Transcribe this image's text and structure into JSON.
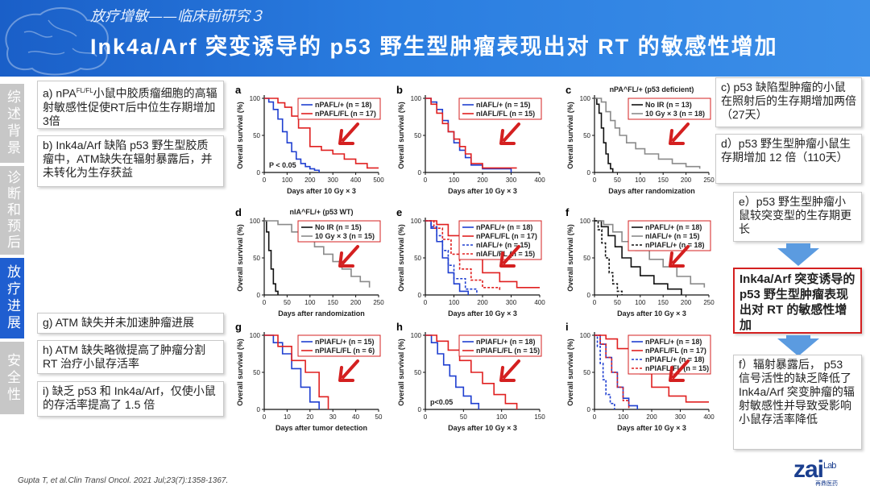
{
  "header": {
    "subtitle": "放疗增敏——临床前研究３",
    "title": "Ink4a/Arf 突变诱导的 p53 野生型肿瘤表现出对 RT 的敏感性增加"
  },
  "sidebar": {
    "tabs": [
      {
        "label": "综述背景",
        "active": false
      },
      {
        "label": "诊断和预后",
        "active": false
      },
      {
        "label": "放疗进展",
        "active": true
      },
      {
        "label": "安全性",
        "active": false
      }
    ]
  },
  "notes_left": {
    "a": "a) nPA",
    "a_sup": "FL/FL",
    "a_rest": "小鼠中胶质瘤细胞的高辐射敏感性促使RT后中位生存期增加3倍",
    "b": "b) Ink4a/Arf 缺陷 p53 野生型胶质瘤中，ATM缺失在辐射暴露后，并未转化为生存获益",
    "g": "g) ATM 缺失并未加速肿瘤进展",
    "h": "h) ATM 缺失略微提高了肿瘤分割 RT 治疗小鼠存活率",
    "i": "i) 缺乏 p53 和 Ink4a/Arf，仅使小鼠的存活率提高了 1.5 倍"
  },
  "notes_right": {
    "c": "c) p53 缺陷型肿瘤的小鼠在照射后的生存期增加两倍（27天）",
    "d": "d）p53 野生型肿瘤小鼠生存期增加 12 倍（110天）",
    "e": "e）p53 野生型肿瘤小鼠较突变型的生存期更长",
    "summary": "Ink4a/Arf 突变诱导的 p53 野生型肿瘤表现出对 RT 的敏感性增加",
    "f": "f）辐射暴露后， p53 信号活性的缺乏降低了 Ink4a/Arf 突变肿瘤的辐射敏感性并导致受影响小鼠存活率降低"
  },
  "citation": "Gupta T, et al.Clin Transl Oncol. 2021 Jul;23(7):1358-1367.",
  "logo": {
    "main": "zai",
    "sup": "Lab",
    "sub": "再鼎医药"
  },
  "colors": {
    "blue": "#1f3fd0",
    "red": "#e02020",
    "black": "#111111",
    "gray": "#8a8a8a",
    "accent": "#1f5ed0"
  },
  "chart_data": [
    {
      "panel": "a",
      "type": "line",
      "xlabel": "Days after 10 Gy × 3",
      "ylabel": "Overall survival (%)",
      "xlim": [
        0,
        500
      ],
      "ylim": [
        0,
        100
      ],
      "xticks": [
        0,
        100,
        200,
        300,
        400,
        500
      ],
      "yticks": [
        0,
        50,
        100
      ],
      "annotation": "P < 0.05",
      "series": [
        {
          "name": "nPA^FL/+ (n = 18)",
          "color": "blue",
          "dash": false,
          "x": [
            0,
            20,
            40,
            60,
            80,
            100,
            120,
            140,
            160,
            180,
            200,
            220,
            240
          ],
          "y": [
            100,
            95,
            85,
            72,
            55,
            40,
            28,
            18,
            12,
            8,
            5,
            3,
            0
          ]
        },
        {
          "name": "nPA^FL/FL (n = 17)",
          "color": "red",
          "dash": false,
          "x": [
            0,
            30,
            60,
            90,
            120,
            150,
            200,
            250,
            300,
            350,
            400,
            450,
            500
          ],
          "y": [
            100,
            100,
            94,
            88,
            76,
            60,
            35,
            30,
            25,
            18,
            12,
            6,
            6
          ]
        }
      ]
    },
    {
      "panel": "b",
      "type": "line",
      "xlabel": "Days after 10 Gy × 3",
      "ylabel": "Overall survival (%)",
      "xlim": [
        0,
        400
      ],
      "ylim": [
        0,
        100
      ],
      "xticks": [
        0,
        100,
        200,
        300,
        400
      ],
      "yticks": [
        0,
        50,
        100
      ],
      "series": [
        {
          "name": "nIA^FL/+ (n = 15)",
          "color": "blue",
          "dash": false,
          "x": [
            0,
            20,
            40,
            60,
            80,
            100,
            120,
            140,
            160,
            200,
            260,
            300
          ],
          "y": [
            100,
            95,
            85,
            70,
            55,
            40,
            30,
            20,
            10,
            5,
            5,
            0
          ]
        },
        {
          "name": "nIA^FL/FL (n = 15)",
          "color": "red",
          "dash": false,
          "x": [
            0,
            20,
            40,
            60,
            80,
            100,
            120,
            140,
            160,
            200,
            260,
            320
          ],
          "y": [
            100,
            92,
            80,
            66,
            55,
            45,
            35,
            25,
            12,
            6,
            6,
            6
          ]
        }
      ]
    },
    {
      "panel": "c",
      "type": "line",
      "title": "nPA^FL/+ (p53 deficient)",
      "xlabel": "Days after randomization",
      "ylabel": "Overall survival (%)",
      "xlim": [
        0,
        250
      ],
      "ylim": [
        0,
        100
      ],
      "xticks": [
        0,
        50,
        100,
        150,
        200,
        250
      ],
      "yticks": [
        0,
        50,
        100
      ],
      "series": [
        {
          "name": "No IR (n = 13)",
          "color": "black",
          "dash": false,
          "x": [
            0,
            5,
            10,
            15,
            20,
            25,
            30,
            35,
            40
          ],
          "y": [
            100,
            92,
            80,
            60,
            40,
            25,
            12,
            5,
            0
          ]
        },
        {
          "name": "10 Gy × 3 (n = 18)",
          "color": "gray",
          "dash": false,
          "x": [
            0,
            15,
            25,
            35,
            45,
            55,
            70,
            90,
            110,
            140,
            170,
            200,
            230
          ],
          "y": [
            100,
            95,
            82,
            70,
            60,
            50,
            40,
            32,
            25,
            18,
            12,
            8,
            5
          ]
        }
      ]
    },
    {
      "panel": "d",
      "type": "line",
      "title": "nIA^FL/+ (p53 WT)",
      "xlabel": "Days after randomization",
      "ylabel": "Overall survival (%)",
      "xlim": [
        0,
        250
      ],
      "ylim": [
        0,
        100
      ],
      "xticks": [
        0,
        50,
        100,
        150,
        200,
        250
      ],
      "yticks": [
        0,
        50,
        100
      ],
      "series": [
        {
          "name": "No IR (n = 15)",
          "color": "black",
          "dash": false,
          "x": [
            0,
            5,
            10,
            15,
            20,
            25,
            30
          ],
          "y": [
            100,
            85,
            60,
            35,
            15,
            5,
            0
          ]
        },
        {
          "name": "10 Gy × 3 (n = 15)",
          "color": "gray",
          "dash": false,
          "x": [
            0,
            30,
            60,
            90,
            110,
            130,
            150,
            170,
            190,
            210,
            230
          ],
          "y": [
            100,
            95,
            85,
            75,
            65,
            55,
            45,
            35,
            25,
            18,
            10
          ]
        }
      ]
    },
    {
      "panel": "e",
      "type": "line",
      "xlabel": "Days after 10 Gy × 3",
      "ylabel": "Overall survival (%)",
      "xlim": [
        0,
        400
      ],
      "ylim": [
        0,
        100
      ],
      "xticks": [
        0,
        100,
        200,
        300,
        400
      ],
      "yticks": [
        0,
        50,
        100
      ],
      "series": [
        {
          "name": "nPA^FL/+ (n = 18)",
          "color": "blue",
          "dash": false,
          "x": [
            0,
            20,
            40,
            60,
            80,
            100,
            120,
            150
          ],
          "y": [
            100,
            90,
            72,
            50,
            30,
            15,
            5,
            0
          ]
        },
        {
          "name": "nPA^FL/FL (n = 17)",
          "color": "red",
          "dash": false,
          "x": [
            0,
            40,
            80,
            120,
            160,
            200,
            260,
            320,
            400
          ],
          "y": [
            100,
            95,
            80,
            65,
            48,
            30,
            18,
            10,
            10
          ]
        },
        {
          "name": "nIA^FL/+ (n = 15)",
          "color": "blue",
          "dash": true,
          "x": [
            0,
            20,
            40,
            60,
            80,
            100,
            140,
            180
          ],
          "y": [
            100,
            92,
            80,
            60,
            40,
            22,
            8,
            0
          ]
        },
        {
          "name": "nIA^FL/FL (n = 15)",
          "color": "red",
          "dash": true,
          "x": [
            0,
            30,
            60,
            90,
            120,
            160,
            200,
            260
          ],
          "y": [
            100,
            90,
            75,
            55,
            35,
            20,
            10,
            5
          ]
        }
      ]
    },
    {
      "panel": "f",
      "type": "line",
      "xlabel": "Days after 10 Gy × 3",
      "ylabel": "Overall survival (%)",
      "xlim": [
        0,
        250
      ],
      "ylim": [
        0,
        100
      ],
      "xticks": [
        0,
        50,
        100,
        150,
        200,
        250
      ],
      "yticks": [
        0,
        50,
        100
      ],
      "series": [
        {
          "name": "nPA^FL/+ (n = 18)",
          "color": "black",
          "dash": false,
          "x": [
            0,
            15,
            30,
            45,
            60,
            80,
            100,
            130,
            160,
            190
          ],
          "y": [
            100,
            92,
            80,
            65,
            50,
            38,
            26,
            15,
            8,
            0
          ]
        },
        {
          "name": "nIA^FL/+ (n = 15)",
          "color": "gray",
          "dash": false,
          "x": [
            0,
            20,
            40,
            60,
            90,
            120,
            150,
            180,
            210,
            240
          ],
          "y": [
            100,
            95,
            85,
            72,
            60,
            48,
            38,
            25,
            15,
            10
          ]
        },
        {
          "name": "nPIA^FL/+ (n = 18)",
          "color": "black",
          "dash": true,
          "x": [
            0,
            8,
            16,
            24,
            32,
            40,
            50,
            60
          ],
          "y": [
            100,
            88,
            70,
            50,
            30,
            15,
            5,
            0
          ]
        }
      ]
    },
    {
      "panel": "g",
      "type": "line",
      "xlabel": "Days after tumor detection",
      "ylabel": "Overall survival (%)",
      "xlim": [
        0,
        50
      ],
      "ylim": [
        0,
        100
      ],
      "xticks": [
        0,
        10,
        20,
        30,
        40,
        50
      ],
      "yticks": [
        0,
        50,
        100
      ],
      "series": [
        {
          "name": "nPIA^FL/+ (n = 15)",
          "color": "blue",
          "dash": false,
          "x": [
            0,
            4,
            8,
            12,
            16,
            20,
            24
          ],
          "y": [
            100,
            90,
            75,
            55,
            30,
            10,
            0
          ]
        },
        {
          "name": "nPIA^FL/FL (n = 6)",
          "color": "red",
          "dash": false,
          "x": [
            0,
            6,
            12,
            18,
            24,
            28
          ],
          "y": [
            100,
            85,
            66,
            50,
            17,
            0
          ]
        }
      ]
    },
    {
      "panel": "h",
      "type": "line",
      "xlabel": "Days after 10 Gy × 3",
      "ylabel": "Overall survival (%)",
      "xlim": [
        0,
        150
      ],
      "ylim": [
        0,
        100
      ],
      "xticks": [
        0,
        50,
        100,
        150
      ],
      "yticks": [
        0,
        50,
        100
      ],
      "annotation": "p<0.05",
      "series": [
        {
          "name": "nPIA^FL/+ (n = 18)",
          "color": "blue",
          "dash": false,
          "x": [
            0,
            8,
            16,
            24,
            32,
            40,
            50,
            60,
            70
          ],
          "y": [
            100,
            90,
            75,
            60,
            45,
            30,
            18,
            8,
            0
          ]
        },
        {
          "name": "nPIA^FL/FL (n = 15)",
          "color": "red",
          "dash": false,
          "x": [
            0,
            15,
            30,
            45,
            60,
            75,
            90,
            105,
            120
          ],
          "y": [
            100,
            92,
            80,
            66,
            50,
            35,
            20,
            8,
            0
          ]
        }
      ]
    },
    {
      "panel": "i",
      "type": "line",
      "xlabel": "Days after 10 Gy × 3",
      "ylabel": "Overall survival (%)",
      "xlim": [
        0,
        400
      ],
      "ylim": [
        0,
        100
      ],
      "xticks": [
        0,
        100,
        200,
        300,
        400
      ],
      "yticks": [
        0,
        50,
        100
      ],
      "series": [
        {
          "name": "nPA^FL/+ (n = 18)",
          "color": "blue",
          "dash": false,
          "x": [
            0,
            20,
            40,
            60,
            80,
            100,
            120,
            150
          ],
          "y": [
            100,
            88,
            70,
            50,
            30,
            15,
            5,
            0
          ]
        },
        {
          "name": "nPA^FL/FL (n = 17)",
          "color": "red",
          "dash": false,
          "x": [
            0,
            40,
            80,
            120,
            160,
            200,
            260,
            320,
            400
          ],
          "y": [
            100,
            95,
            82,
            66,
            48,
            30,
            18,
            10,
            10
          ]
        },
        {
          "name": "nPIA^FL/+ (n = 18)",
          "color": "blue",
          "dash": true,
          "x": [
            0,
            10,
            20,
            30,
            40,
            55,
            70
          ],
          "y": [
            100,
            85,
            62,
            40,
            20,
            8,
            0
          ]
        },
        {
          "name": "nPIA^FL/FL (n = 15)",
          "color": "red",
          "dash": true,
          "x": [
            0,
            20,
            40,
            60,
            80,
            100,
            120
          ],
          "y": [
            100,
            88,
            70,
            50,
            30,
            12,
            0
          ]
        }
      ]
    }
  ]
}
